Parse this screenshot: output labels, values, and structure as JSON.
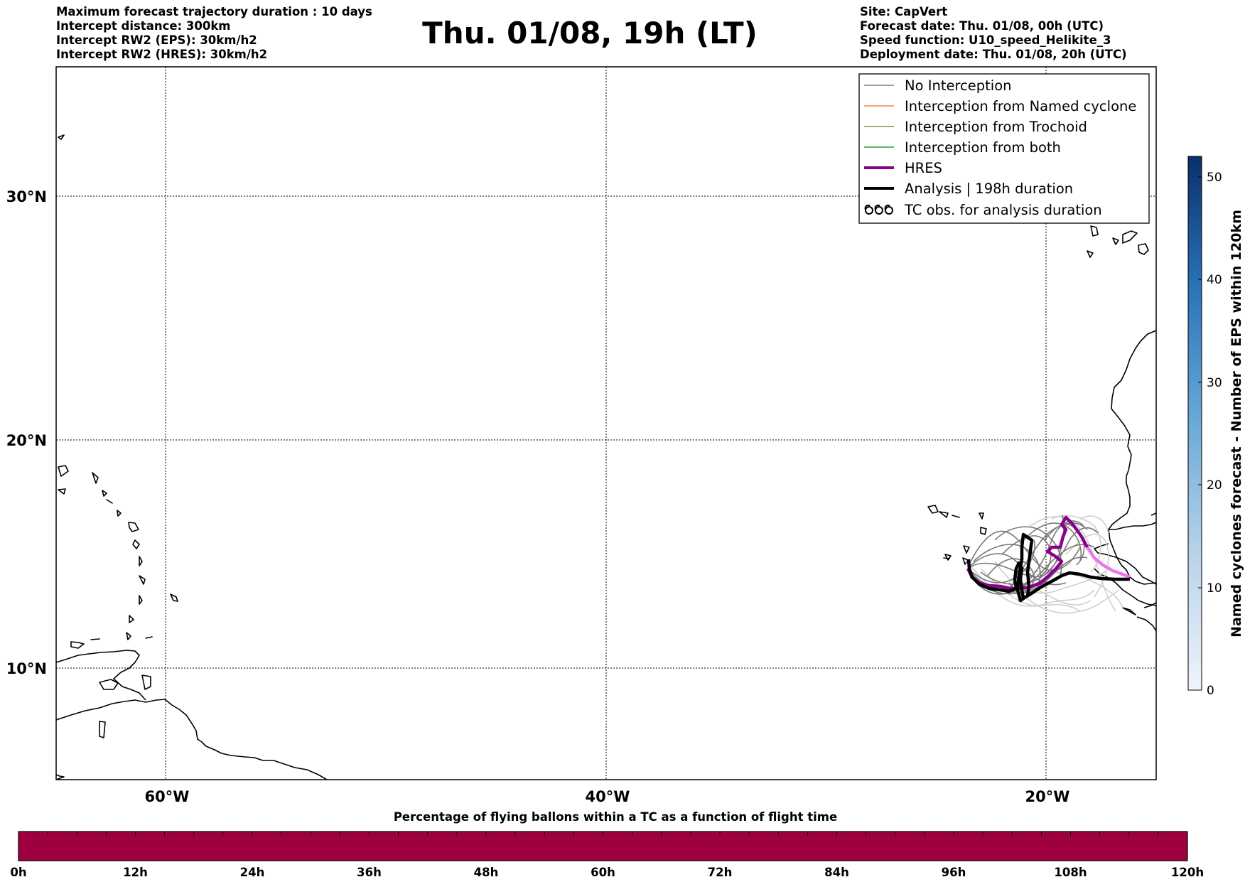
{
  "header_left": [
    "Maximum forecast trajectory duration : 10 days",
    "Intercept distance: 300km",
    "Intercept RW2 (EPS):  30km/h2",
    "Intercept RW2 (HRES): 30km/h2"
  ],
  "title": "Thu. 01/08, 19h (LT)",
  "header_right": [
    "Site: CapVert",
    "Forecast date: Thu. 01/08, 00h (UTC)",
    "Speed function: U10_speed_Helikite_3",
    "Deployment date: Thu. 01/08, 20h (UTC)"
  ],
  "map": {
    "lat_ticks": [
      "30°N",
      "20°N",
      "10°N"
    ],
    "lon_ticks": [
      "60°W",
      "40°W",
      "20°W"
    ]
  },
  "legend": {
    "items": [
      {
        "label": "No Interception",
        "color": "#808080",
        "symbol": "line-thin"
      },
      {
        "label": "Interception from Named cyclone",
        "color": "#ff7f50",
        "symbol": "line-thin"
      },
      {
        "label": "Interception from Trochoid",
        "color": "#9b8a3a",
        "symbol": "line-thin"
      },
      {
        "label": "Interception from both",
        "color": "#2ca02c",
        "symbol": "line-thin"
      },
      {
        "label": "HRES",
        "color": "#8b008b",
        "symbol": "line-thick"
      },
      {
        "label": "Analysis | 198h duration",
        "color": "#000000",
        "symbol": "line-thick"
      },
      {
        "label": "TC obs. for analysis duration",
        "color": "#000000",
        "symbol": "cyclone-icons"
      }
    ]
  },
  "colorbar_right": {
    "label": "Named cyclones forecast - Number of EPS within 120km",
    "ticks": [
      "0",
      "10",
      "20",
      "30",
      "40",
      "50"
    ],
    "range": [
      0,
      52
    ],
    "color_low": "#e8f0fa",
    "color_high": "#0a306b"
  },
  "bottom_bar": {
    "title": "Percentage of flying ballons within a TC as a function of flight time",
    "ticks": [
      "0h",
      "12h",
      "24h",
      "36h",
      "48h",
      "60h",
      "72h",
      "84h",
      "96h",
      "108h",
      "120h"
    ],
    "color": "#9f0040"
  },
  "colors": {
    "hres": "#8b008b",
    "hres_late": "#e879e8",
    "analysis": "#000000",
    "eps_dark": "#6b6b6b",
    "eps_light": "#cfcfcf"
  }
}
